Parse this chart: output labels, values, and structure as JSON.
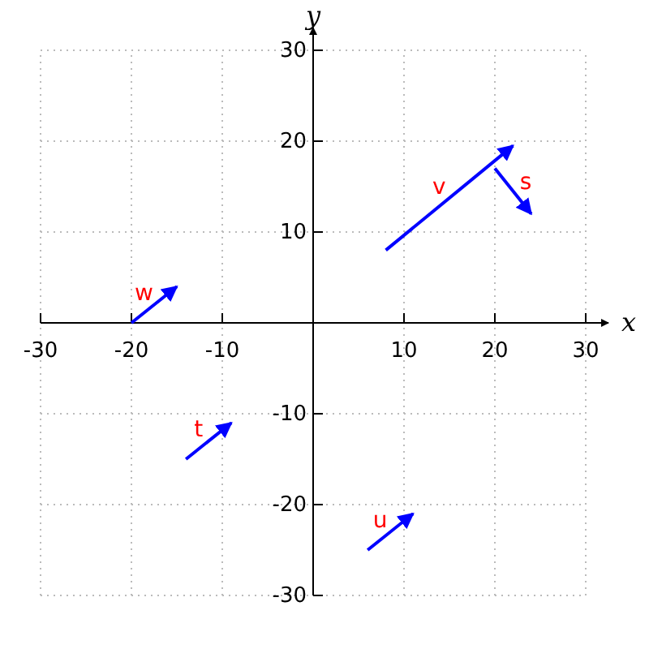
{
  "chart_data": {
    "type": "line",
    "xlabel": "x",
    "ylabel": "y",
    "xlim": [
      -30,
      30
    ],
    "ylim": [
      -30,
      30
    ],
    "xticks": [
      -30,
      -20,
      -10,
      10,
      20,
      30
    ],
    "yticks": [
      -30,
      -20,
      -10,
      10,
      20,
      30
    ],
    "grid": true,
    "marker": "none",
    "line_style": "solid",
    "series": [
      {
        "name": "v",
        "color": "#0000ff",
        "x": [
          8,
          22
        ],
        "values": [
          8,
          19.5
        ]
      },
      {
        "name": "s",
        "color": "#0000ff",
        "x": [
          20,
          24
        ],
        "values": [
          17,
          12
        ]
      },
      {
        "name": "w",
        "color": "#0000ff",
        "x": [
          -20,
          -15
        ],
        "values": [
          0,
          4
        ]
      },
      {
        "name": "t",
        "color": "#0000ff",
        "x": [
          -14,
          -9
        ],
        "values": [
          -15,
          -11
        ]
      },
      {
        "name": "u",
        "color": "#0000ff",
        "x": [
          6,
          11
        ],
        "values": [
          -25,
          -21
        ]
      }
    ]
  }
}
